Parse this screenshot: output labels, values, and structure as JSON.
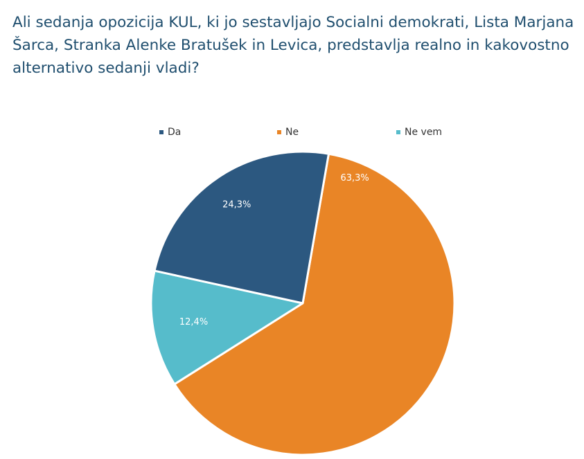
{
  "title": "Ali sedanja opozicija KUL, ki jo sestavljajo Socialni demokrati, Lista Marjana Šarca, Stranka Alenke Bratušek in Levica, predstavlja realno in kakovostno alternativo sedanji vladi?",
  "chart_data": {
    "type": "pie",
    "title": "Ali sedanja opozicija KUL, ki jo sestavljajo Socialni demokrati, Lista Marjana Šarca, Stranka Alenke Bratušek in Levica, predstavlja realno in kakovostno alternativo sedanji vladi?",
    "legend_position": "top",
    "categories": [
      "Da",
      "Ne",
      "Ne vem"
    ],
    "values": [
      24.3,
      63.3,
      12.4
    ],
    "labels": [
      "24,3%",
      "63,3%",
      "12,4%"
    ],
    "colors": [
      "#2c5880",
      "#e98526",
      "#56bccb"
    ]
  }
}
